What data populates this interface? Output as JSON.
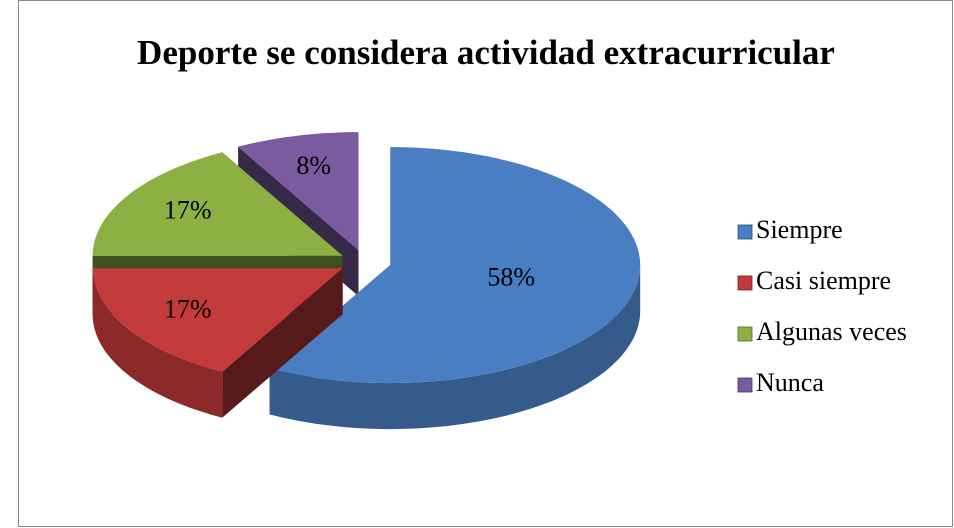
{
  "chart_data": {
    "type": "pie3d",
    "title": "Deporte se considera actividad extracurricular",
    "categories": [
      "Siempre",
      "Casi siempre",
      "Algunas veces",
      "Nunca"
    ],
    "values": [
      58,
      17,
      17,
      8
    ],
    "value_labels": [
      "58%",
      "17%",
      "17%",
      "8%"
    ],
    "colors": [
      "#4a7ec2",
      "#c23a3a",
      "#8db043",
      "#7a5b9f"
    ],
    "legend": "right"
  }
}
